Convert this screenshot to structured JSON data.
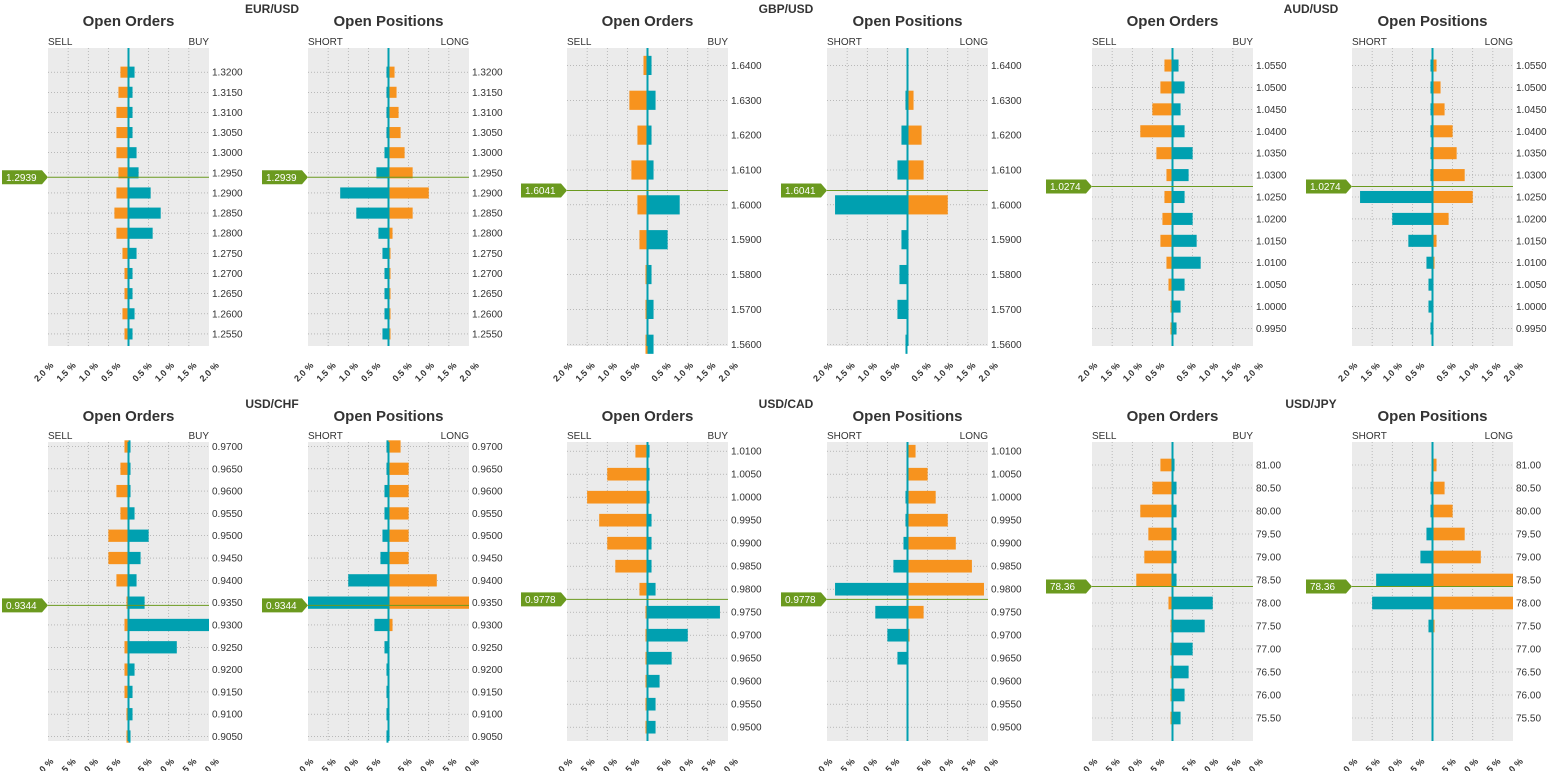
{
  "colors": {
    "sell": "#f7931e",
    "buy": "#00a0b0",
    "plot_bg": "#ebebeb",
    "grid": "#9a9a9a",
    "price_line": "#6b9a1f",
    "price_tag": "#6b9a1f"
  },
  "pct_ticks": [
    "2.0 %",
    "1.5 %",
    "1.0 %",
    "0.5 %",
    "0.5 %",
    "1.0 %",
    "1.5 %",
    "2.0 %"
  ],
  "chart_data": [
    {
      "pair": "EUR/USD",
      "current_price": "1.2939",
      "current_value": 1.2939,
      "ylim": [
        1.252,
        1.326
      ],
      "yticks": [
        "1.3200",
        "1.3150",
        "1.3100",
        "1.3050",
        "1.3000",
        "1.2950",
        "1.2900",
        "1.2850",
        "1.2800",
        "1.2750",
        "1.2700",
        "1.2650",
        "1.2600",
        "1.2550"
      ],
      "orders": {
        "type": "bar",
        "title": "Open Orders",
        "left_label": "SELL",
        "right_label": "BUY",
        "xlim": [
          -2.0,
          2.0
        ],
        "levels": [
          1.255,
          1.26,
          1.265,
          1.27,
          1.275,
          1.28,
          1.285,
          1.29,
          1.295,
          1.3,
          1.305,
          1.31,
          1.315,
          1.32
        ],
        "sell": [
          0.1,
          0.15,
          0.1,
          0.1,
          0.15,
          0.3,
          0.35,
          0.3,
          0.25,
          0.3,
          0.3,
          0.3,
          0.25,
          0.2
        ],
        "buy": [
          0.1,
          0.15,
          0.1,
          0.1,
          0.2,
          0.6,
          0.8,
          0.55,
          0.25,
          0.2,
          0.1,
          0.1,
          0.1,
          0.15
        ]
      },
      "positions": {
        "type": "bar",
        "title": "Open Positions",
        "left_label": "SHORT",
        "right_label": "LONG",
        "xlim": [
          -2.0,
          2.0
        ],
        "levels": [
          1.255,
          1.26,
          1.265,
          1.27,
          1.275,
          1.28,
          1.285,
          1.29,
          1.295,
          1.3,
          1.305,
          1.31,
          1.315,
          1.32
        ],
        "short": [
          0.15,
          0.1,
          0.1,
          0.1,
          0.15,
          0.25,
          0.8,
          1.2,
          0.3,
          0.1,
          0.05,
          0.05,
          0.05,
          0.05
        ],
        "long": [
          0.05,
          0.05,
          0.05,
          0.05,
          0.05,
          0.1,
          0.6,
          1.0,
          0.6,
          0.4,
          0.3,
          0.25,
          0.2,
          0.15
        ]
      }
    },
    {
      "pair": "GBP/USD",
      "current_price": "1.6041",
      "current_value": 1.6041,
      "ylim": [
        1.5595,
        1.645
      ],
      "yticks": [
        "1.6400",
        "1.6300",
        "1.6200",
        "1.6100",
        "1.6000",
        "1.5900",
        "1.5800",
        "1.5700",
        "1.5600"
      ],
      "orders": {
        "type": "bar",
        "title": "Open Orders",
        "left_label": "SELL",
        "right_label": "BUY",
        "xlim": [
          -2.0,
          2.0
        ],
        "levels": [
          1.56,
          1.57,
          1.58,
          1.59,
          1.6,
          1.61,
          1.62,
          1.63,
          1.64
        ],
        "sell": [
          0.05,
          0.05,
          0.05,
          0.2,
          0.25,
          0.4,
          0.25,
          0.45,
          0.1
        ],
        "buy": [
          0.15,
          0.15,
          0.1,
          0.5,
          0.8,
          0.15,
          0.1,
          0.2,
          0.1
        ]
      },
      "positions": {
        "type": "bar",
        "title": "Open Positions",
        "left_label": "SHORT",
        "right_label": "LONG",
        "xlim": [
          -2.0,
          2.0
        ],
        "levels": [
          1.56,
          1.57,
          1.58,
          1.59,
          1.6,
          1.61,
          1.62,
          1.63,
          1.64
        ],
        "short": [
          0.05,
          0.25,
          0.2,
          0.15,
          1.8,
          0.25,
          0.15,
          0.05,
          0.0
        ],
        "long": [
          0.0,
          0.0,
          0.0,
          0.0,
          1.0,
          0.4,
          0.35,
          0.15,
          0.0
        ]
      }
    },
    {
      "pair": "AUD/USD",
      "current_price": "1.0274",
      "current_value": 1.0274,
      "ylim": [
        0.991,
        1.059
      ],
      "yticks": [
        "1.0550",
        "1.0500",
        "1.0450",
        "1.0400",
        "1.0350",
        "1.0300",
        "1.0250",
        "1.0200",
        "1.0150",
        "1.0100",
        "1.0050",
        "1.0000",
        "0.9950"
      ],
      "orders": {
        "type": "bar",
        "title": "Open Orders",
        "left_label": "SELL",
        "right_label": "BUY",
        "xlim": [
          -2.0,
          2.0
        ],
        "levels": [
          0.995,
          1.0,
          1.005,
          1.01,
          1.015,
          1.02,
          1.025,
          1.03,
          1.035,
          1.04,
          1.045,
          1.05,
          1.055
        ],
        "sell": [
          0.05,
          0.05,
          0.1,
          0.15,
          0.3,
          0.25,
          0.2,
          0.15,
          0.4,
          0.8,
          0.5,
          0.3,
          0.2
        ],
        "buy": [
          0.1,
          0.2,
          0.3,
          0.7,
          0.6,
          0.5,
          0.3,
          0.4,
          0.5,
          0.3,
          0.2,
          0.3,
          0.15
        ]
      },
      "positions": {
        "type": "bar",
        "title": "Open Positions",
        "left_label": "SHORT",
        "right_label": "LONG",
        "xlim": [
          -2.0,
          2.0
        ],
        "levels": [
          0.995,
          1.0,
          1.005,
          1.01,
          1.015,
          1.02,
          1.025,
          1.03,
          1.035,
          1.04,
          1.045,
          1.05,
          1.055
        ],
        "short": [
          0.05,
          0.1,
          0.1,
          0.15,
          0.6,
          1.0,
          1.8,
          0.05,
          0.05,
          0.05,
          0.05,
          0.05,
          0.05
        ],
        "long": [
          0.0,
          0.0,
          0.0,
          0.05,
          0.1,
          0.4,
          1.0,
          0.8,
          0.6,
          0.5,
          0.3,
          0.2,
          0.1
        ]
      }
    },
    {
      "pair": "USD/CHF",
      "current_price": "0.9344",
      "current_value": 0.9344,
      "ylim": [
        0.904,
        0.971
      ],
      "yticks": [
        "0.9700",
        "0.9650",
        "0.9600",
        "0.9550",
        "0.9500",
        "0.9450",
        "0.9400",
        "0.9350",
        "0.9300",
        "0.9250",
        "0.9200",
        "0.9150",
        "0.9100",
        "0.9050"
      ],
      "orders": {
        "type": "bar",
        "title": "Open Orders",
        "left_label": "SELL",
        "right_label": "BUY",
        "xlim": [
          -2.0,
          2.0
        ],
        "levels": [
          0.905,
          0.91,
          0.915,
          0.92,
          0.925,
          0.93,
          0.935,
          0.94,
          0.945,
          0.95,
          0.955,
          0.96,
          0.965,
          0.97
        ],
        "sell": [
          0.05,
          0.05,
          0.1,
          0.1,
          0.1,
          0.1,
          0.05,
          0.3,
          0.5,
          0.5,
          0.2,
          0.3,
          0.2,
          0.1
        ],
        "buy": [
          0.05,
          0.1,
          0.1,
          0.15,
          1.2,
          2.0,
          0.4,
          0.2,
          0.3,
          0.5,
          0.15,
          0.05,
          0.05,
          0.05
        ]
      },
      "positions": {
        "type": "bar",
        "title": "Open Positions",
        "left_label": "SHORT",
        "right_label": "LONG",
        "xlim": [
          -2.0,
          2.0
        ],
        "levels": [
          0.905,
          0.91,
          0.915,
          0.92,
          0.925,
          0.93,
          0.935,
          0.94,
          0.945,
          0.95,
          0.955,
          0.96,
          0.965,
          0.97
        ],
        "short": [
          0.05,
          0.05,
          0.05,
          0.05,
          0.1,
          0.35,
          2.0,
          1.0,
          0.2,
          0.15,
          0.1,
          0.1,
          0.05,
          0.05
        ],
        "long": [
          0.0,
          0.0,
          0.0,
          0.0,
          0.0,
          0.1,
          2.0,
          1.2,
          0.5,
          0.5,
          0.5,
          0.5,
          0.5,
          0.3
        ]
      }
    },
    {
      "pair": "USD/CAD",
      "current_price": "0.9778",
      "current_value": 0.9778,
      "ylim": [
        0.947,
        1.012
      ],
      "yticks": [
        "1.0100",
        "1.0050",
        "1.0000",
        "0.9950",
        "0.9900",
        "0.9850",
        "0.9800",
        "0.9750",
        "0.9700",
        "0.9650",
        "0.9600",
        "0.9550",
        "0.9500"
      ],
      "orders": {
        "type": "bar",
        "title": "Open Orders",
        "left_label": "SELL",
        "right_label": "BUY",
        "xlim": [
          -2.0,
          2.0
        ],
        "levels": [
          0.95,
          0.955,
          0.96,
          0.965,
          0.97,
          0.975,
          0.98,
          0.985,
          0.99,
          0.995,
          1.0,
          1.005,
          1.01
        ],
        "sell": [
          0.05,
          0.05,
          0.05,
          0.05,
          0.05,
          0.05,
          0.2,
          0.8,
          1.0,
          1.2,
          1.5,
          1.0,
          0.3
        ],
        "buy": [
          0.2,
          0.2,
          0.3,
          0.6,
          1.0,
          1.8,
          0.2,
          0.1,
          0.1,
          0.1,
          0.05,
          0.05,
          0.05
        ]
      },
      "positions": {
        "type": "bar",
        "title": "Open Positions",
        "left_label": "SHORT",
        "right_label": "LONG",
        "xlim": [
          -2.0,
          2.0
        ],
        "levels": [
          0.95,
          0.955,
          0.96,
          0.965,
          0.97,
          0.975,
          0.98,
          0.985,
          0.99,
          0.995,
          1.0,
          1.005,
          1.01
        ],
        "short": [
          0.0,
          0.0,
          0.0,
          0.25,
          0.5,
          0.8,
          1.8,
          0.35,
          0.1,
          0.05,
          0.05,
          0.0,
          0.0
        ],
        "long": [
          0.0,
          0.0,
          0.0,
          0.0,
          0.05,
          0.4,
          1.9,
          1.6,
          1.2,
          1.0,
          0.7,
          0.5,
          0.2
        ]
      }
    },
    {
      "pair": "USD/JPY",
      "current_price": "78.36",
      "current_value": 78.36,
      "ylim": [
        75.0,
        81.5
      ],
      "yticks": [
        "81.00",
        "80.50",
        "80.00",
        "79.50",
        "79.00",
        "78.50",
        "78.00",
        "77.50",
        "77.00",
        "76.50",
        "76.00",
        "75.50"
      ],
      "orders": {
        "type": "bar",
        "title": "Open Orders",
        "left_label": "SELL",
        "right_label": "BUY",
        "xlim": [
          -2.0,
          2.0
        ],
        "levels": [
          75.5,
          76.0,
          76.5,
          77.0,
          77.5,
          78.0,
          78.5,
          79.0,
          79.5,
          80.0,
          80.5,
          81.0
        ],
        "sell": [
          0.05,
          0.05,
          0.05,
          0.05,
          0.05,
          0.1,
          0.9,
          0.7,
          0.6,
          0.8,
          0.5,
          0.3
        ],
        "buy": [
          0.2,
          0.3,
          0.4,
          0.5,
          0.8,
          1.0,
          0.1,
          0.1,
          0.1,
          0.1,
          0.1,
          0.05
        ]
      },
      "positions": {
        "type": "bar",
        "title": "Open Positions",
        "left_label": "SHORT",
        "right_label": "LONG",
        "xlim": [
          -2.0,
          2.0
        ],
        "levels": [
          75.5,
          76.0,
          76.5,
          77.0,
          77.5,
          78.0,
          78.5,
          79.0,
          79.5,
          80.0,
          80.5,
          81.0
        ],
        "short": [
          0.0,
          0.0,
          0.0,
          0.0,
          0.1,
          1.5,
          1.4,
          0.3,
          0.15,
          0.05,
          0.05,
          0.0
        ],
        "long": [
          0.0,
          0.0,
          0.0,
          0.0,
          0.05,
          2.0,
          2.0,
          1.2,
          0.8,
          0.5,
          0.3,
          0.1
        ]
      }
    }
  ]
}
